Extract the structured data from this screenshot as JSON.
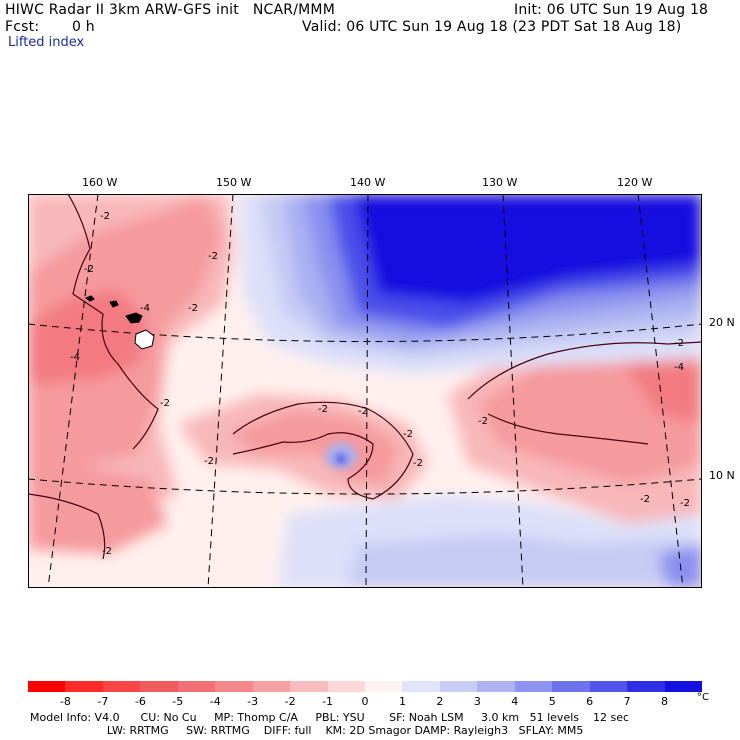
{
  "header": {
    "title_line": "HIWC Radar II 3km ARW-GFS init   NCAR/MMM",
    "fcst_label": "Fcst:",
    "fcst_value": "0 h",
    "init": "Init: 06 UTC Sun 19 Aug 18",
    "valid": "Valid: 06 UTC Sun 19 Aug 18 (23 PDT Sat 18 Aug 18)",
    "field": "Lifted index"
  },
  "map": {
    "lon_labels": [
      "160 W",
      "150 W",
      "140 W",
      "130 W",
      "120 W"
    ],
    "lat_labels": [
      "20 N",
      "10 N"
    ],
    "contour_label": "-2",
    "contour_label_minus4": "-4",
    "colors": {
      "neg8": "#ff2a2a",
      "neg6": "#f0585c",
      "neg4": "#f27a80",
      "neg3": "#f59a9d",
      "neg2": "#f8b7b9",
      "neg1": "#fbd3d4",
      "zero": "#fff0ee",
      "white": "#ffffff",
      "pos1": "#dde0f9",
      "pos2": "#c6cbf4",
      "pos3": "#a9b0f1",
      "pos4": "#8990ee",
      "pos5": "#6a70ec",
      "pos6": "#4c50ea",
      "pos7": "#2f30e6",
      "pos8": "#1410e0"
    }
  },
  "colorbar": {
    "ticks": [
      "-8",
      "-7",
      "-6",
      "-5",
      "-4",
      "-3",
      "-2",
      "-1",
      "0",
      "1",
      "2",
      "3",
      "4",
      "5",
      "6",
      "7",
      "8"
    ],
    "unit": "°C",
    "colors": [
      "#ff0000",
      "#ff2a2a",
      "#f94545",
      "#f05c5c",
      "#f07075",
      "#f3878c",
      "#f6a2a5",
      "#f9bcbe",
      "#fcd8d8",
      "#fff4f2",
      "#e2e4fb",
      "#c9cdf6",
      "#adb3f2",
      "#8e94ef",
      "#6e73ec",
      "#5056ea",
      "#2f30e6",
      "#1410e0"
    ]
  },
  "footer": {
    "line1": "Model Info: V4.0      CU: No Cu     MP: Thomp C/A     PBL: YSU       SF: Noah LSM     3.0 km   51 levels    12 sec",
    "line2": "                      LW: RRTMG     SW: RRTMG    DIFF: full    KM: 2D Smagor DAMP: Rayleigh3   SFLAY: MM5"
  }
}
